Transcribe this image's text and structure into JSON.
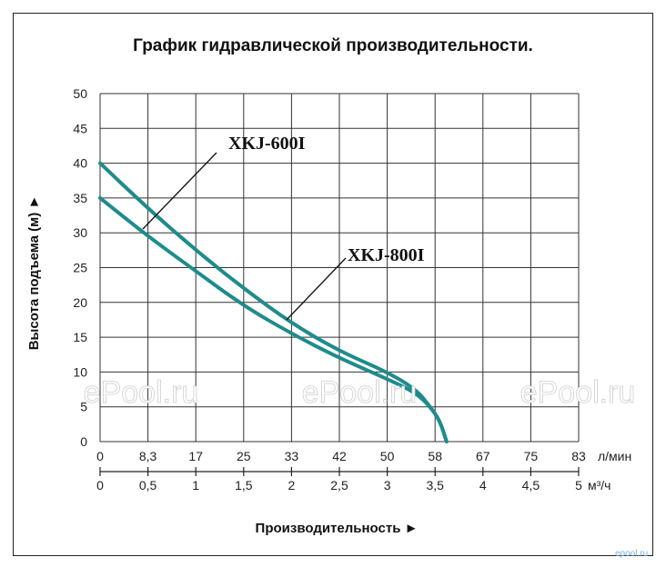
{
  "chart_data": {
    "type": "line",
    "title": "График гидравлической производительности.",
    "ylabel": "Высота подъема (м) ►",
    "xlabel": "Производительность ►",
    "ylim": [
      0,
      50
    ],
    "yticks": [
      "0",
      "5",
      "10",
      "15",
      "20",
      "25",
      "30",
      "35",
      "40",
      "45",
      "50"
    ],
    "xlim": [
      0,
      5
    ],
    "xticks_lmin": [
      "0",
      "8,3",
      "17",
      "25",
      "33",
      "42",
      "50",
      "58",
      "67",
      "75",
      "83"
    ],
    "xunit_lmin": "л/мин",
    "xticks_m3h": [
      "0",
      "0,5",
      "1",
      "1,5",
      "2",
      "2,5",
      "3",
      "3,5",
      "4",
      "4,5",
      "5"
    ],
    "xunit_m3h": "м³/ч",
    "grid": true,
    "series": [
      {
        "name": "XKJ-600I",
        "color": "#1f8b8b",
        "x": [
          0,
          0.5,
          1.0,
          1.5,
          2.0,
          2.5,
          3.0,
          3.3,
          3.45,
          3.55,
          3.62
        ],
        "y": [
          35,
          29.5,
          24.5,
          19.5,
          15.5,
          12,
          9,
          7,
          5,
          3,
          0
        ]
      },
      {
        "name": "XKJ-800I",
        "color": "#1f8b8b",
        "x": [
          0,
          0.5,
          1.0,
          1.5,
          2.0,
          2.5,
          3.0,
          3.3,
          3.45,
          3.55,
          3.62
        ],
        "y": [
          40,
          33.5,
          27.5,
          22,
          17,
          13,
          10,
          7.5,
          5,
          3,
          0
        ]
      }
    ],
    "watermark": [
      "ePool.ru",
      "ePool.ru",
      "ePool.ru"
    ],
    "corner_mark": "epool.ru"
  }
}
